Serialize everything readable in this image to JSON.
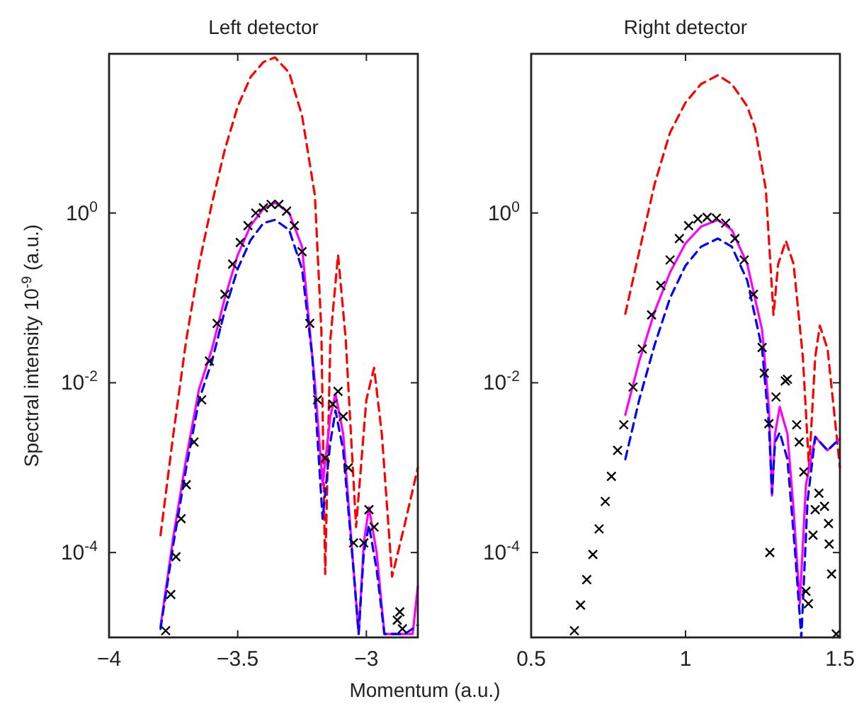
{
  "chart_data": [
    {
      "type": "line",
      "title": "Left detector",
      "xlabel": "Momentum (a.u.)",
      "ylabel": "Spectral intensity 10$^{-9}$ (a.u.)",
      "log": "y",
      "xlim": [
        -4,
        -2.8
      ],
      "xticks": [
        -4,
        -3.5,
        -3
      ],
      "ylim": [
        1e-05,
        75
      ],
      "yticks": [
        {
          "value": 0.0001,
          "label": "10$^{-4}$"
        },
        {
          "value": 0.01,
          "label": "10$^{-2}$"
        },
        {
          "value": 1,
          "label": "10$^{0}$"
        }
      ],
      "series": [
        {
          "line_style": "dashed",
          "color": "#ff0000",
          "x": [
            -3.8,
            -3.75,
            -3.7,
            -3.65,
            -3.6,
            -3.55,
            -3.5,
            -3.45,
            -3.4,
            -3.355,
            -3.3,
            -3.25,
            -3.2,
            -3.175,
            -3.16,
            -3.14,
            -3.11,
            -3.08,
            -3.04,
            -3.0,
            -2.97,
            -2.94,
            -2.9,
            -2.85,
            -2.8
          ],
          "values": [
            0.00016,
            0.0025,
            0.032,
            0.25,
            1.3,
            5.6,
            18,
            40,
            60,
            68,
            45,
            14,
            1.6,
            0.042,
            5.6e-05,
            0.032,
            0.32,
            0.032,
            0.0002,
            0.0063,
            0.015,
            0.0025,
            5.2e-05,
            0.00022,
            0.001
          ]
        },
        {
          "line_style": "solid",
          "color": "#ff00ff",
          "x": [
            -3.8,
            -3.75,
            -3.7,
            -3.65,
            -3.6,
            -3.55,
            -3.5,
            -3.45,
            -3.4,
            -3.355,
            -3.3,
            -3.25,
            -3.22,
            -3.2,
            -3.17,
            -3.14,
            -3.12,
            -3.09,
            -3.06,
            -3.03,
            -3.01,
            -2.99,
            -2.96,
            -2.93,
            -2.82,
            -2.8
          ],
          "values": [
            1.35e-05,
            0.000155,
            0.0013,
            0.0085,
            0.025,
            0.1,
            0.32,
            0.71,
            1.12,
            1.32,
            1.0,
            0.4,
            0.042,
            0.01,
            0.00063,
            0.004,
            0.0074,
            0.0025,
            0.00016,
            1.1e-05,
            0.00013,
            0.00034,
            0.0001,
            1.1e-05,
            1.1e-05,
            4e-05
          ]
        },
        {
          "line_style": "dashed",
          "color": "#0000ff",
          "x": [
            -3.8,
            -3.75,
            -3.7,
            -3.65,
            -3.6,
            -3.55,
            -3.5,
            -3.45,
            -3.4,
            -3.355,
            -3.3,
            -3.25,
            -3.21,
            -3.17,
            -3.14,
            -3.12,
            -3.09,
            -3.05,
            -3.03,
            -3.01,
            -2.99,
            -2.96,
            -2.93,
            -2.85,
            -2.8
          ],
          "values": [
            1.26e-05,
            0.000126,
            0.001,
            0.0063,
            0.018,
            0.071,
            0.22,
            0.48,
            0.76,
            0.83,
            0.63,
            0.22,
            0.02,
            0.00025,
            0.002,
            0.0047,
            0.0016,
            6.3e-05,
            1.1e-05,
            0.0001,
            0.00021,
            6.3e-05,
            1.1e-05,
            1.1e-05,
            1.4e-05
          ]
        },
        {
          "type": "scatter",
          "marker": "cross",
          "color": "#000000",
          "x": [
            -3.78,
            -3.76,
            -3.74,
            -3.72,
            -3.7,
            -3.67,
            -3.64,
            -3.61,
            -3.58,
            -3.55,
            -3.52,
            -3.49,
            -3.46,
            -3.43,
            -3.4,
            -3.37,
            -3.34,
            -3.31,
            -3.28,
            -3.25,
            -3.22,
            -3.19,
            -3.16,
            -3.13,
            -3.11,
            -3.09,
            -3.07,
            -3.05,
            -3.01,
            -2.99,
            -2.97,
            -2.88,
            -2.87,
            -2.86
          ],
          "values": [
            1.2e-05,
            3.2e-05,
            8.9e-05,
            0.00025,
            0.00063,
            0.002,
            0.0063,
            0.018,
            0.05,
            0.11,
            0.25,
            0.45,
            0.71,
            1.0,
            1.15,
            1.26,
            1.26,
            1.05,
            0.71,
            0.35,
            0.05,
            0.0063,
            0.0013,
            0.0056,
            0.0079,
            0.004,
            0.001,
            0.00013,
            0.00013,
            0.00032,
            0.0002,
            1.6e-05,
            2e-05,
            1.26e-05
          ]
        }
      ]
    },
    {
      "type": "line",
      "title": "Right detector",
      "log": "y",
      "xlim": [
        0.5,
        1.5
      ],
      "xticks": [
        0.5,
        1,
        1.5
      ],
      "ylim": [
        1e-05,
        75
      ],
      "yticks": [
        {
          "value": 0.0001,
          "label": "10$^{-4}$"
        },
        {
          "value": 0.01,
          "label": "10$^{-2}$"
        },
        {
          "value": 1,
          "label": "10$^{0}$"
        }
      ],
      "series": [
        {
          "line_style": "dashed",
          "color": "#ff0000",
          "x": [
            0.805,
            0.85,
            0.9,
            0.95,
            1.0,
            1.05,
            1.105,
            1.15,
            1.2,
            1.225,
            1.26,
            1.285,
            1.3,
            1.325,
            1.35,
            1.38,
            1.4,
            1.42,
            1.435,
            1.46,
            1.48,
            1.5
          ],
          "values": [
            0.065,
            0.35,
            2.2,
            8.9,
            20,
            33,
            42,
            33,
            18,
            10,
            1.9,
            0.063,
            0.25,
            0.47,
            0.25,
            0.02,
            0.001,
            0.02,
            0.047,
            0.025,
            0.005,
            0.001
          ]
        },
        {
          "line_style": "solid",
          "color": "#ff00ff",
          "x": [
            0.805,
            0.85,
            0.9,
            0.95,
            1.0,
            1.05,
            1.105,
            1.15,
            1.2,
            1.248,
            1.27,
            1.28,
            1.29,
            1.305,
            1.33,
            1.35,
            1.37,
            1.39,
            1.42,
            1.46,
            1.5
          ],
          "values": [
            0.0042,
            0.018,
            0.069,
            0.2,
            0.44,
            0.69,
            0.83,
            0.63,
            0.25,
            0.042,
            0.005,
            0.00047,
            0.0025,
            0.0052,
            0.0025,
            0.00032,
            2.5e-05,
            0.00063,
            0.0023,
            0.0016,
            0.0022
          ]
        },
        {
          "line_style": "dashed",
          "color": "#0000ff",
          "x": [
            0.805,
            0.85,
            0.9,
            0.95,
            1.0,
            1.05,
            1.105,
            1.15,
            1.2,
            1.248,
            1.27,
            1.28,
            1.29,
            1.305,
            1.33,
            1.355,
            1.375,
            1.395,
            1.42,
            1.46,
            1.5
          ],
          "values": [
            0.00126,
            0.0063,
            0.028,
            0.1,
            0.24,
            0.4,
            0.5,
            0.4,
            0.16,
            0.025,
            0.0032,
            0.0005,
            0.002,
            0.0026,
            0.00126,
            0.0001,
            1e-05,
            0.0004,
            0.0023,
            0.0016,
            0.0022
          ]
        },
        {
          "type": "scatter",
          "marker": "cross",
          "color": "#000000",
          "x": [
            0.64,
            0.66,
            0.68,
            0.7,
            0.72,
            0.74,
            0.76,
            0.78,
            0.8,
            0.83,
            0.86,
            0.89,
            0.92,
            0.95,
            0.98,
            1.01,
            1.04,
            1.07,
            1.1,
            1.13,
            1.16,
            1.19,
            1.22,
            1.248,
            1.255,
            1.27,
            1.273,
            1.293,
            1.323,
            1.33,
            1.36,
            1.368,
            1.383,
            1.39,
            1.398,
            1.413,
            1.42,
            1.432,
            1.45,
            1.463,
            1.465,
            1.473,
            1.488
          ],
          "values": [
            1.2e-05,
            2.4e-05,
            4.8e-05,
            9.5e-05,
            0.00019,
            0.0004,
            0.00079,
            0.0016,
            0.0032,
            0.0089,
            0.025,
            0.063,
            0.14,
            0.28,
            0.5,
            0.71,
            0.85,
            0.89,
            0.87,
            0.76,
            0.5,
            0.28,
            0.11,
            0.026,
            0.013,
            0.0033,
            0.0001,
            0.0068,
            0.0105,
            0.011,
            0.0032,
            0.002,
            0.00089,
            3.5e-05,
            2.5e-05,
            0.00016,
            0.00032,
            0.0005,
            0.00035,
            0.00022,
            0.000126,
            5.6e-05,
            1.1e-05
          ]
        }
      ]
    }
  ]
}
